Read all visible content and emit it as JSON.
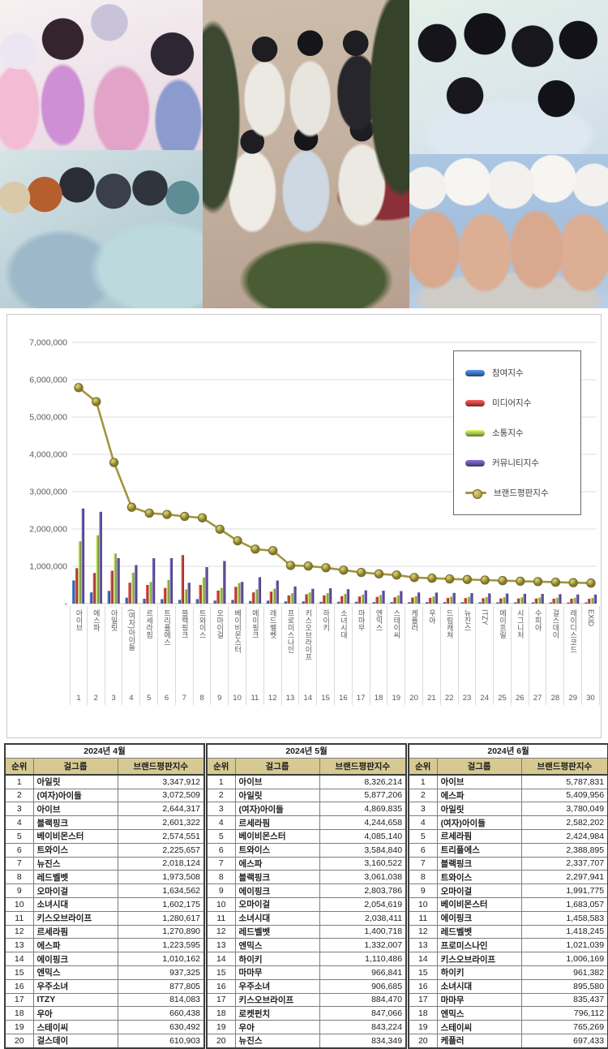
{
  "colors": {
    "participation_blue": "#3f6cb4",
    "media_red": "#bb4440",
    "communication_green": "#9dc04a",
    "community_purple": "#64519f",
    "brand_line_olive": "#a0953d",
    "marker_fill": "#b4a947",
    "marker_stroke": "#6f6526",
    "table_header_khaki": "#d6ca92",
    "grid_gray": "#dcdcdc"
  },
  "photos": {
    "items": [
      {
        "name": "photo-top-left-girl-group"
      },
      {
        "name": "photo-bottom-left-girl-group"
      },
      {
        "name": "photo-center-girl-group"
      },
      {
        "name": "photo-top-right-girl-group"
      },
      {
        "name": "photo-bottom-right-girl-group"
      }
    ]
  },
  "chart_data": {
    "type": "bar+line",
    "title": "",
    "xlabel": "",
    "ylabel": "",
    "ylim": [
      0,
      7000000
    ],
    "y_tick_step": 1000000,
    "grid": true,
    "legend_position": "upper-right",
    "y_ticks": [
      "7,000,000",
      "6,000,000",
      "5,000,000",
      "4,000,000",
      "3,000,000",
      "2,000,000",
      "1,000,000",
      "-"
    ],
    "categories": [
      "아이브",
      "에스파",
      "아일릿",
      "(여자)아이들",
      "르세라핌",
      "트리플에스",
      "블랙핑크",
      "트와이스",
      "오마이걸",
      "베이비몬스터",
      "에이핑크",
      "레드벨벳",
      "프로미스나인",
      "키스오브라이프",
      "하이키",
      "소녀시대",
      "마마무",
      "엔믹스",
      "스테이씨",
      "케플러",
      "우아",
      "드림캐쳐",
      "뉴진스",
      "ITZY",
      "에이프릴",
      "시그니처",
      "수피아",
      "걸스데이",
      "레이디스코드",
      "EXID"
    ],
    "series": [
      {
        "name": "참여지수",
        "color": "#3f6cb4",
        "values": [
          620000,
          300000,
          340000,
          160000,
          130000,
          120000,
          100000,
          120000,
          80000,
          100000,
          70000,
          80000,
          60000,
          60000,
          50000,
          50000,
          50000,
          40000,
          40000,
          40000,
          40000,
          38000,
          37000,
          36000,
          35000,
          34000,
          33000,
          32000,
          31000,
          30000
        ]
      },
      {
        "name": "미디어지수",
        "color": "#bb4440",
        "values": [
          950000,
          820000,
          880000,
          560000,
          500000,
          420000,
          1300000,
          500000,
          350000,
          450000,
          300000,
          320000,
          220000,
          250000,
          220000,
          200000,
          190000,
          180000,
          170000,
          160000,
          155000,
          150000,
          148000,
          145000,
          140000,
          138000,
          135000,
          132000,
          130000,
          128000
        ]
      },
      {
        "name": "소통지수",
        "color": "#9dc04a",
        "values": [
          1670000,
          1830000,
          1340000,
          830000,
          580000,
          630000,
          380000,
          700000,
          420000,
          550000,
          380000,
          400000,
          280000,
          300000,
          280000,
          260000,
          240000,
          230000,
          220000,
          200000,
          190000,
          185000,
          180000,
          175000,
          170000,
          165000,
          162000,
          158000,
          154000,
          150000
        ]
      },
      {
        "name": "커뮤니티지수",
        "color": "#64519f",
        "values": [
          2547831,
          2459956,
          1220049,
          1032202,
          1214984,
          1218895,
          557707,
          977941,
          1141775,
          583057,
          708583,
          618245,
          461039,
          396169,
          411382,
          385580,
          355437,
          346112,
          335269,
          297433,
          295000,
          287000,
          280000,
          274000,
          270000,
          263000,
          260000,
          253000,
          245000,
          242000
        ]
      }
    ],
    "line": {
      "name": "브랜드평판지수",
      "color": "#a0953d",
      "values": [
        5787831,
        5409956,
        3780049,
        2582202,
        2424984,
        2388895,
        2337707,
        2297941,
        1991775,
        1683057,
        1458583,
        1418245,
        1021039,
        1006169,
        961382,
        895580,
        835437,
        796112,
        765269,
        697433,
        680000,
        660000,
        645000,
        630000,
        615000,
        600000,
        590000,
        575000,
        560000,
        550000
      ]
    }
  },
  "tables": [
    {
      "month": "2024년 4월",
      "headers": [
        "순위",
        "걸그룹",
        "브랜드평판지수"
      ],
      "rows": [
        [
          "1",
          "아일릿",
          "3,347,912"
        ],
        [
          "2",
          "(여자)아이들",
          "3,072,509"
        ],
        [
          "3",
          "아이브",
          "2,644,317"
        ],
        [
          "4",
          "블랙핑크",
          "2,601,322"
        ],
        [
          "5",
          "베이비몬스터",
          "2,574,551"
        ],
        [
          "6",
          "트와이스",
          "2,225,657"
        ],
        [
          "7",
          "뉴진스",
          "2,018,124"
        ],
        [
          "8",
          "레드벨벳",
          "1,973,508"
        ],
        [
          "9",
          "오마이걸",
          "1,634,562"
        ],
        [
          "10",
          "소녀시대",
          "1,602,175"
        ],
        [
          "11",
          "키스오브라이프",
          "1,280,617"
        ],
        [
          "12",
          "르세라핌",
          "1,270,890"
        ],
        [
          "13",
          "에스파",
          "1,223,595"
        ],
        [
          "14",
          "에이핑크",
          "1,010,162"
        ],
        [
          "15",
          "엔믹스",
          "937,325"
        ],
        [
          "16",
          "우주소녀",
          "877,805"
        ],
        [
          "17",
          "ITZY",
          "814,083"
        ],
        [
          "18",
          "우아",
          "660,438"
        ],
        [
          "19",
          "스테이씨",
          "630,492"
        ],
        [
          "20",
          "걸스데이",
          "610,903"
        ]
      ]
    },
    {
      "month": "2024년 5월",
      "headers": [
        "순위",
        "걸그룹",
        "브랜드평판지수"
      ],
      "rows": [
        [
          "1",
          "아이브",
          "8,326,214"
        ],
        [
          "2",
          "아일릿",
          "5,877,206"
        ],
        [
          "3",
          "(여자)아이들",
          "4,869,835"
        ],
        [
          "4",
          "르세라핌",
          "4,244,658"
        ],
        [
          "5",
          "베이비몬스터",
          "4,085,140"
        ],
        [
          "6",
          "트와이스",
          "3,584,840"
        ],
        [
          "7",
          "에스파",
          "3,160,522"
        ],
        [
          "8",
          "블랙핑크",
          "3,061,038"
        ],
        [
          "9",
          "에이핑크",
          "2,803,786"
        ],
        [
          "10",
          "오마이걸",
          "2,054,619"
        ],
        [
          "11",
          "소녀시대",
          "2,038,411"
        ],
        [
          "12",
          "레드벨벳",
          "1,400,718"
        ],
        [
          "13",
          "엔믹스",
          "1,332,007"
        ],
        [
          "14",
          "하이키",
          "1,110,486"
        ],
        [
          "15",
          "마마무",
          "966,841"
        ],
        [
          "16",
          "우주소녀",
          "906,685"
        ],
        [
          "17",
          "키스오브라이프",
          "884,470"
        ],
        [
          "18",
          "로켓펀치",
          "847,066"
        ],
        [
          "19",
          "우아",
          "843,224"
        ],
        [
          "20",
          "뉴진스",
          "834,349"
        ]
      ]
    },
    {
      "month": "2024년 6월",
      "headers": [
        "순위",
        "걸그룹",
        "브랜드평판지수"
      ],
      "rows": [
        [
          "1",
          "아이브",
          "5,787,831"
        ],
        [
          "2",
          "에스파",
          "5,409,956"
        ],
        [
          "3",
          "아일릿",
          "3,780,049"
        ],
        [
          "4",
          "(여자)아이들",
          "2,582,202"
        ],
        [
          "5",
          "르세라핌",
          "2,424,984"
        ],
        [
          "6",
          "트리플에스",
          "2,388,895"
        ],
        [
          "7",
          "블랙핑크",
          "2,337,707"
        ],
        [
          "8",
          "트와이스",
          "2,297,941"
        ],
        [
          "9",
          "오마이걸",
          "1,991,775"
        ],
        [
          "10",
          "베이비몬스터",
          "1,683,057"
        ],
        [
          "11",
          "에이핑크",
          "1,458,583"
        ],
        [
          "12",
          "레드벨벳",
          "1,418,245"
        ],
        [
          "13",
          "프로미스나인",
          "1,021,039"
        ],
        [
          "14",
          "키스오브라이프",
          "1,006,169"
        ],
        [
          "15",
          "하이키",
          "961,382"
        ],
        [
          "16",
          "소녀시대",
          "895,580"
        ],
        [
          "17",
          "마마무",
          "835,437"
        ],
        [
          "18",
          "엔믹스",
          "796,112"
        ],
        [
          "19",
          "스테이씨",
          "765,269"
        ],
        [
          "20",
          "케플러",
          "697,433"
        ]
      ]
    }
  ]
}
